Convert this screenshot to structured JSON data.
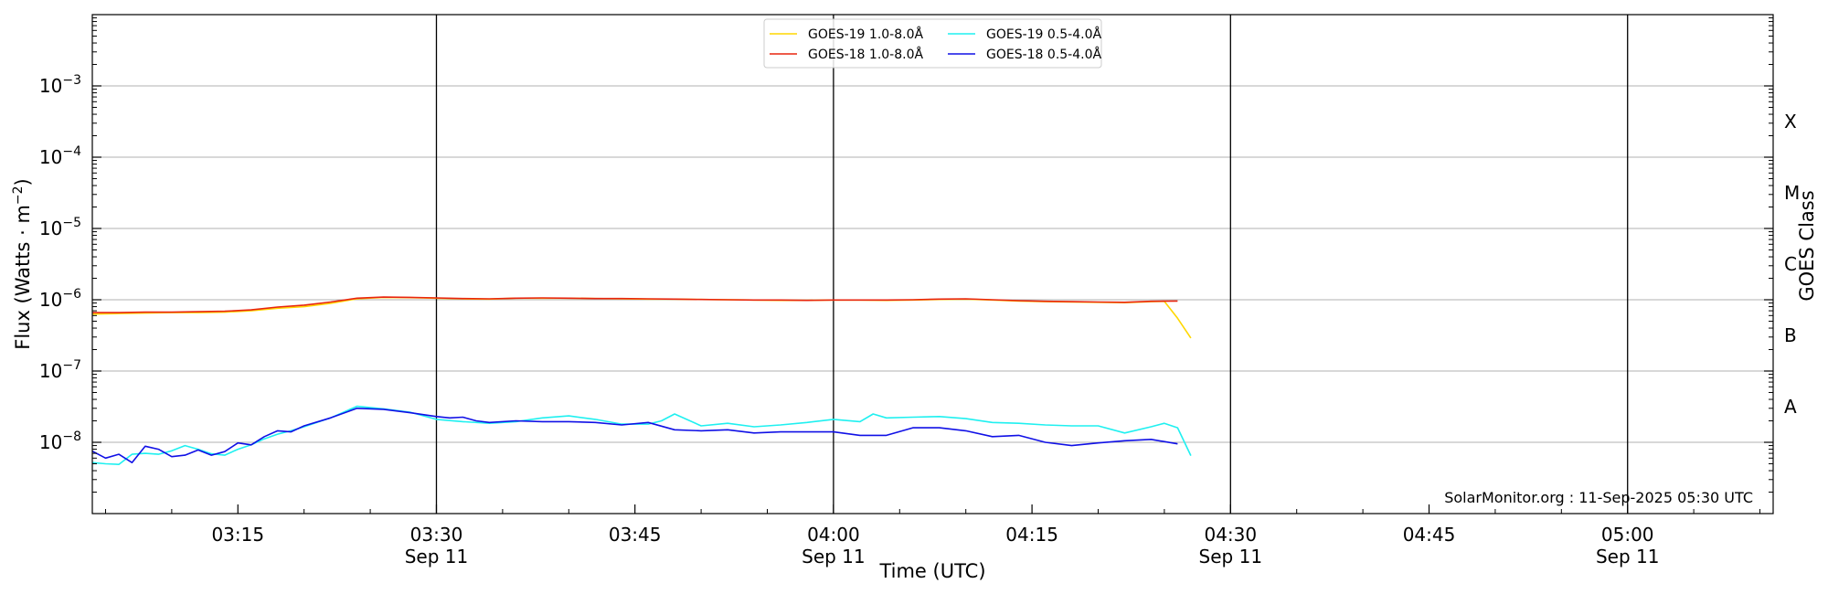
{
  "chart_data": {
    "type": "line",
    "xlabel": "Time (UTC)",
    "ylabel_prefix": "Flux (Watts · m",
    "ylabel_exp": "−2",
    "ylabel_suffix": ")",
    "y2label": "GOES Class",
    "credit": "SolarMonitor.org : 11-Sep-2025 05:30 UTC",
    "xlim": [
      "03:04",
      "05:11"
    ],
    "ylim": [
      1e-09,
      0.01
    ],
    "yscale": "log",
    "y_ticks": [
      {
        "value": 1e-08,
        "base": "10",
        "exp": "−8"
      },
      {
        "value": 1e-07,
        "base": "10",
        "exp": "−7"
      },
      {
        "value": 1e-06,
        "base": "10",
        "exp": "−6"
      },
      {
        "value": 1e-05,
        "base": "10",
        "exp": "−5"
      },
      {
        "value": 0.0001,
        "base": "10",
        "exp": "−4"
      },
      {
        "value": 0.001,
        "base": "10",
        "exp": "−3"
      }
    ],
    "x_ticks": [
      {
        "time": "03:15",
        "label": "03:15",
        "sublabel": ""
      },
      {
        "time": "03:30",
        "label": "03:30",
        "sublabel": "Sep 11"
      },
      {
        "time": "03:45",
        "label": "03:45",
        "sublabel": ""
      },
      {
        "time": "04:00",
        "label": "04:00",
        "sublabel": "Sep 11"
      },
      {
        "time": "04:15",
        "label": "04:15",
        "sublabel": ""
      },
      {
        "time": "04:30",
        "label": "04:30",
        "sublabel": "Sep 11"
      },
      {
        "time": "04:45",
        "label": "04:45",
        "sublabel": ""
      },
      {
        "time": "05:00",
        "label": "05:00",
        "sublabel": "Sep 11"
      }
    ],
    "vertical_lines": [
      "03:30",
      "04:00",
      "04:30",
      "05:00"
    ],
    "goes_classes": [
      {
        "label": "A",
        "value": 3.16e-08
      },
      {
        "label": "B",
        "value": 3.16e-07
      },
      {
        "label": "C",
        "value": 3.16e-06
      },
      {
        "label": "M",
        "value": 3.16e-05
      },
      {
        "label": "X",
        "value": 0.000316
      }
    ],
    "grid": true,
    "legend_position": "top-center",
    "series": [
      {
        "name": "GOES-19 1.0-8.0Å",
        "color": "#ffd700",
        "legend_slot": 0,
        "x": [
          "03:04",
          "03:06",
          "03:08",
          "03:10",
          "03:12",
          "03:14",
          "03:16",
          "03:18",
          "03:20",
          "03:22",
          "03:24",
          "03:26",
          "03:28",
          "03:30",
          "03:32",
          "03:34",
          "03:36",
          "03:38",
          "03:40",
          "03:42",
          "03:44",
          "03:46",
          "03:48",
          "03:50",
          "03:52",
          "03:54",
          "03:56",
          "03:58",
          "04:00",
          "04:02",
          "04:04",
          "04:06",
          "04:08",
          "04:10",
          "04:12",
          "04:14",
          "04:16",
          "04:18",
          "04:20",
          "04:22",
          "04:24",
          "04:25",
          "04:26",
          "04:27"
        ],
        "y": [
          6.3e-07,
          6.4e-07,
          6.5e-07,
          6.6e-07,
          6.6e-07,
          6.7e-07,
          7e-07,
          7.6e-07,
          8e-07,
          8.9e-07,
          1.03e-06,
          1.08e-06,
          1.07e-06,
          1.05e-06,
          1.03e-06,
          1.02e-06,
          1.05e-06,
          1.05e-06,
          1.05e-06,
          1.04e-06,
          1.03e-06,
          1.02e-06,
          1.02e-06,
          1.01e-06,
          1e-06,
          9.9e-07,
          9.8e-07,
          9.8e-07,
          9.9e-07,
          9.9e-07,
          9.8e-07,
          9.9e-07,
          1.01e-06,
          1.02e-06,
          9.9e-07,
          9.6e-07,
          9.4e-07,
          9.3e-07,
          9.2e-07,
          9.1e-07,
          9.4e-07,
          9.5e-07,
          5.5e-07,
          2.9e-07
        ]
      },
      {
        "name": "GOES-18 1.0-8.0Å",
        "color": "#e8250f",
        "legend_slot": 1,
        "x": [
          "03:04",
          "03:06",
          "03:08",
          "03:10",
          "03:12",
          "03:14",
          "03:16",
          "03:18",
          "03:20",
          "03:22",
          "03:24",
          "03:26",
          "03:28",
          "03:30",
          "03:32",
          "03:34",
          "03:36",
          "03:38",
          "03:40",
          "03:42",
          "03:44",
          "03:46",
          "03:48",
          "03:50",
          "03:52",
          "03:54",
          "03:56",
          "03:58",
          "04:00",
          "04:02",
          "04:04",
          "04:06",
          "04:08",
          "04:10",
          "04:12",
          "04:14",
          "04:16",
          "04:18",
          "04:20",
          "04:22",
          "04:24",
          "04:26"
        ],
        "y": [
          6.6e-07,
          6.6e-07,
          6.7e-07,
          6.7e-07,
          6.8e-07,
          6.9e-07,
          7.2e-07,
          7.9e-07,
          8.4e-07,
          9.3e-07,
          1.05e-06,
          1.09e-06,
          1.08e-06,
          1.06e-06,
          1.04e-06,
          1.03e-06,
          1.05e-06,
          1.06e-06,
          1.05e-06,
          1.04e-06,
          1.04e-06,
          1.03e-06,
          1.02e-06,
          1.01e-06,
          1e-06,
          9.9e-07,
          9.9e-07,
          9.8e-07,
          9.9e-07,
          9.9e-07,
          9.9e-07,
          1e-06,
          1.02e-06,
          1.03e-06,
          1e-06,
          9.7e-07,
          9.5e-07,
          9.4e-07,
          9.3e-07,
          9.2e-07,
          9.5e-07,
          9.6e-07
        ]
      },
      {
        "name": "GOES-19 0.5-4.0Å",
        "color": "#1ff0f0",
        "legend_slot": 2,
        "x": [
          "03:04",
          "03:05",
          "03:06",
          "03:07",
          "03:08",
          "03:09",
          "03:10",
          "03:11",
          "03:12",
          "03:13",
          "03:14",
          "03:15",
          "03:16",
          "03:17",
          "03:18",
          "03:19",
          "03:20",
          "03:22",
          "03:24",
          "03:26",
          "03:28",
          "03:30",
          "03:32",
          "03:34",
          "03:36",
          "03:38",
          "03:40",
          "03:42",
          "03:44",
          "03:46",
          "03:47",
          "03:48",
          "03:50",
          "03:52",
          "03:54",
          "03:56",
          "03:58",
          "04:00",
          "04:02",
          "04:03",
          "04:04",
          "04:06",
          "04:08",
          "04:10",
          "04:12",
          "04:14",
          "04:16",
          "04:18",
          "04:20",
          "04:22",
          "04:24",
          "04:25",
          "04:26",
          "04:27"
        ],
        "y": [
          5.2e-09,
          5e-09,
          4.9e-09,
          6.8e-09,
          7e-09,
          6.8e-09,
          7.6e-09,
          9e-09,
          8e-09,
          6.9e-09,
          6.6e-09,
          8e-09,
          9.2e-09,
          1.12e-08,
          1.3e-08,
          1.45e-08,
          1.65e-08,
          2.2e-08,
          3.2e-08,
          2.95e-08,
          2.65e-08,
          2.1e-08,
          1.95e-08,
          1.85e-08,
          1.95e-08,
          2.2e-08,
          2.35e-08,
          2.1e-08,
          1.8e-08,
          1.8e-08,
          2e-08,
          2.5e-08,
          1.7e-08,
          1.85e-08,
          1.65e-08,
          1.75e-08,
          1.9e-08,
          2.1e-08,
          1.95e-08,
          2.5e-08,
          2.2e-08,
          2.25e-08,
          2.3e-08,
          2.15e-08,
          1.9e-08,
          1.85e-08,
          1.75e-08,
          1.7e-08,
          1.7e-08,
          1.35e-08,
          1.65e-08,
          1.85e-08,
          1.6e-08,
          6.5e-09
        ]
      },
      {
        "name": "GOES-18 0.5-4.0Å",
        "color": "#1010e6",
        "legend_slot": 3,
        "x": [
          "03:04",
          "03:05",
          "03:06",
          "03:07",
          "03:08",
          "03:09",
          "03:10",
          "03:11",
          "03:12",
          "03:13",
          "03:14",
          "03:15",
          "03:16",
          "03:17",
          "03:18",
          "03:19",
          "03:20",
          "03:22",
          "03:24",
          "03:26",
          "03:28",
          "03:30",
          "03:31",
          "03:32",
          "03:33",
          "03:34",
          "03:36",
          "03:38",
          "03:40",
          "03:42",
          "03:44",
          "03:46",
          "03:48",
          "03:50",
          "03:52",
          "03:54",
          "03:56",
          "03:58",
          "04:00",
          "04:02",
          "04:04",
          "04:06",
          "04:08",
          "04:10",
          "04:12",
          "04:14",
          "04:16",
          "04:18",
          "04:20",
          "04:22",
          "04:24",
          "04:26"
        ],
        "y": [
          7.5e-09,
          6e-09,
          6.8e-09,
          5.2e-09,
          8.8e-09,
          8e-09,
          6.3e-09,
          6.6e-09,
          7.8e-09,
          6.6e-09,
          7.4e-09,
          9.8e-09,
          9.2e-09,
          1.2e-08,
          1.45e-08,
          1.4e-08,
          1.7e-08,
          2.2e-08,
          3e-08,
          2.9e-08,
          2.6e-08,
          2.3e-08,
          2.2e-08,
          2.25e-08,
          2e-08,
          1.9e-08,
          2e-08,
          1.95e-08,
          1.95e-08,
          1.9e-08,
          1.75e-08,
          1.9e-08,
          1.5e-08,
          1.45e-08,
          1.5e-08,
          1.35e-08,
          1.4e-08,
          1.4e-08,
          1.4e-08,
          1.25e-08,
          1.25e-08,
          1.6e-08,
          1.6e-08,
          1.45e-08,
          1.2e-08,
          1.25e-08,
          1e-08,
          9e-09,
          9.8e-09,
          1.05e-08,
          1.1e-08,
          9.5e-09
        ]
      }
    ]
  }
}
